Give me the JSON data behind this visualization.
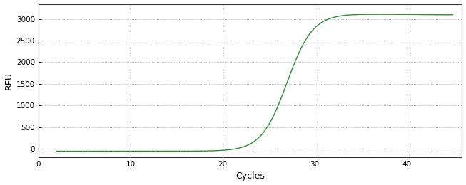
{
  "title": "",
  "xlabel": "Cycles",
  "ylabel": "RFU",
  "line_color": "#2e8b2e",
  "background_color": "#ffffff",
  "plot_bg_color": "#ffffff",
  "grid_color": "#9999aa",
  "xlim": [
    0,
    46
  ],
  "ylim": [
    -200,
    3350
  ],
  "xticks": [
    0,
    10,
    20,
    30,
    40
  ],
  "yticks": [
    0,
    500,
    1000,
    1500,
    2000,
    2500,
    3000
  ],
  "sigmoid_L": 3180,
  "sigmoid_k": 0.72,
  "sigmoid_x0": 27.0,
  "baseline": -60,
  "plateau_drop": 80,
  "x_start": 2,
  "x_end": 45
}
